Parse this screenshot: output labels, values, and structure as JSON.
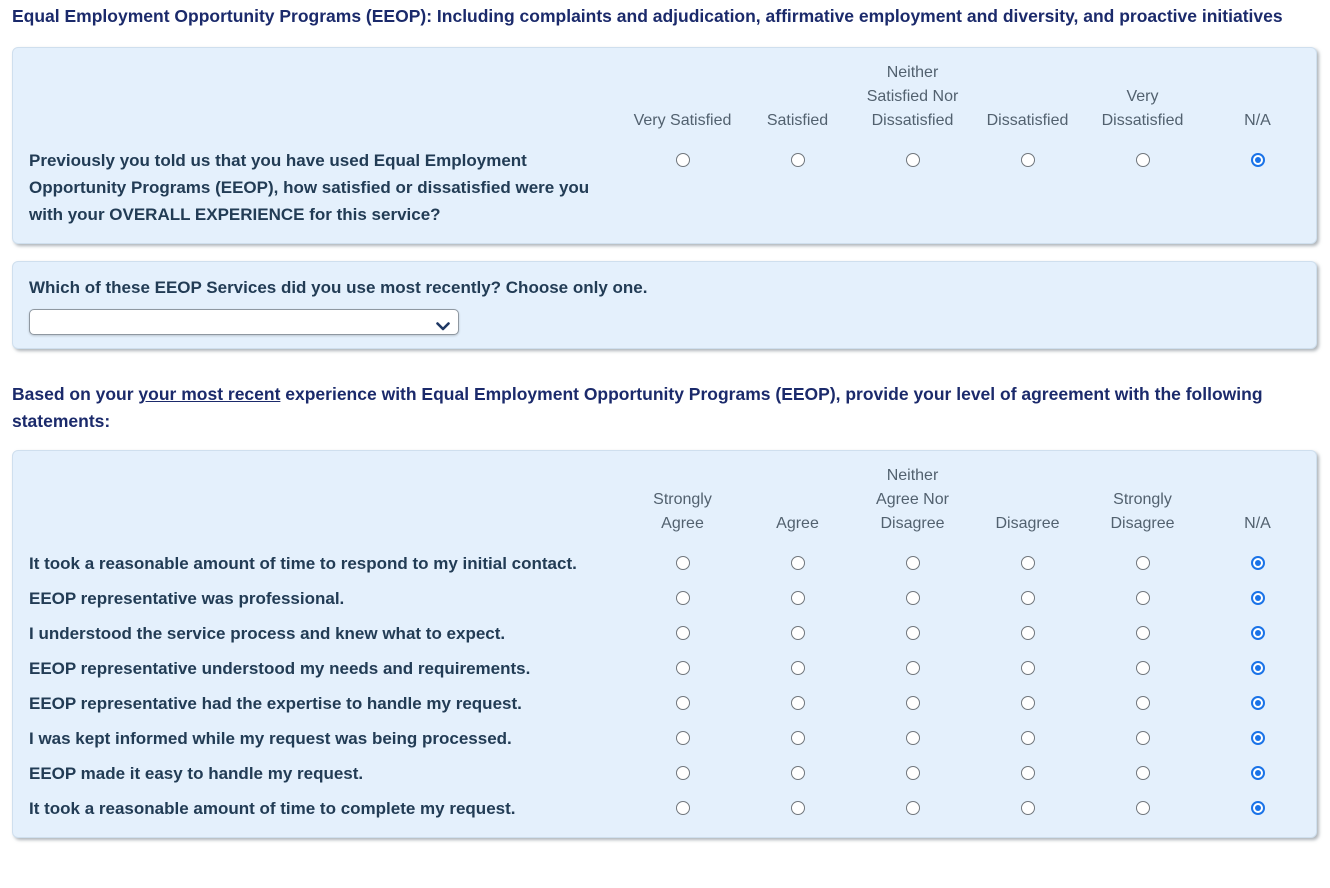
{
  "page_title": "Equal Employment Opportunity Programs (EEOP): Including complaints and adjudication, affirmative employment and diversity, and proactive initiatives",
  "colors": {
    "title_navy": "#1b2a6b",
    "question_slate": "#223c55",
    "header_gray": "#52616f",
    "panel_bg": "#e4f0fc",
    "radio_checked_blue": "#1a73e8"
  },
  "satisfaction_table": {
    "columns": [
      "Very Satisfied",
      "Satisfied",
      "Neither\nSatisfied Nor\nDissatisfied",
      "Dissatisfied",
      "Very\nDissatisfied",
      "N/A"
    ],
    "rows": [
      {
        "statement": "Previously you told us that you have used Equal Employment Opportunity Programs (EEOP), how satisfied or dissatisfied were you with your OVERALL EXPERIENCE for this service?",
        "selected": "N/A"
      }
    ]
  },
  "service_select": {
    "question_prefix": "Which of these EEOP Services did you use ",
    "question_bold": "most recently",
    "question_suffix": "? Choose only one.",
    "value": "",
    "chevron_icon": "chevron-down"
  },
  "agreement_intro": {
    "prefix": "Based on your ",
    "underlined": "your most recent",
    "suffix": " experience with Equal Employment Opportunity Programs (EEOP), provide your level of agreement with the following statements:"
  },
  "agreement_table": {
    "columns": [
      "Strongly\nAgree",
      "Agree",
      "Neither\nAgree Nor\nDisagree",
      "Disagree",
      "Strongly\nDisagree",
      "N/A"
    ],
    "rows": [
      {
        "statement": "It took a reasonable amount of time to respond to my initial contact.",
        "selected": "N/A"
      },
      {
        "statement": "EEOP representative was professional.",
        "selected": "N/A"
      },
      {
        "statement": "I understood the service process and knew what to expect.",
        "selected": "N/A"
      },
      {
        "statement": "EEOP representative understood my needs and requirements.",
        "selected": "N/A"
      },
      {
        "statement": "EEOP representative had the expertise to handle my request.",
        "selected": "N/A"
      },
      {
        "statement": "I was kept informed while my request was being processed.",
        "selected": "N/A"
      },
      {
        "statement": "EEOP made it easy to handle my request.",
        "selected": "N/A"
      },
      {
        "statement": "It took a reasonable amount of time to complete my request.",
        "selected": "N/A"
      }
    ]
  }
}
